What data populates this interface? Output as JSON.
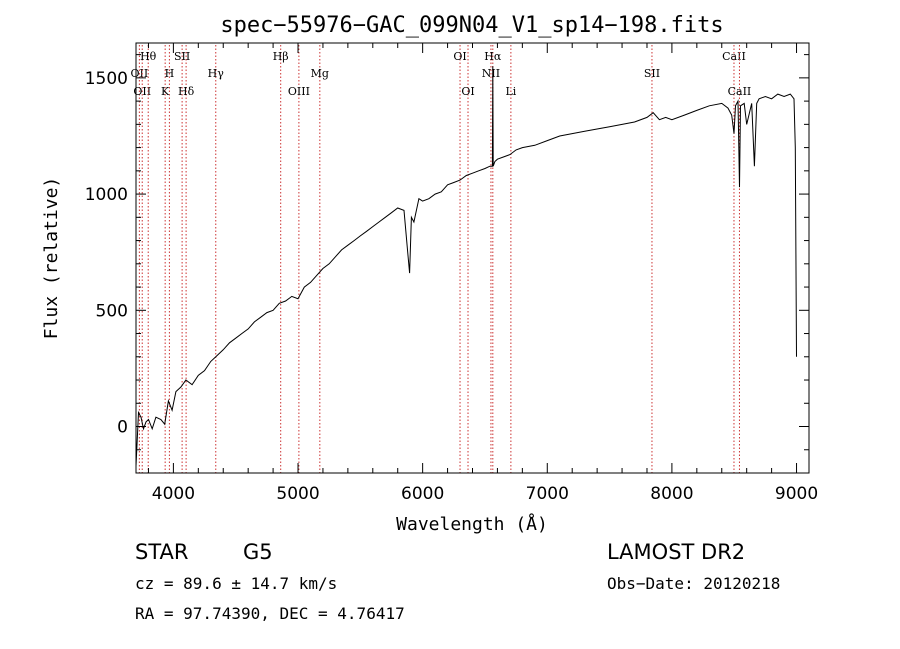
{
  "chart_data": {
    "type": "line",
    "title": "spec−55976−GAC_099N04_V1_sp14−198.fits",
    "xlabel": "Wavelength (Å)",
    "ylabel": "Flux (relative)",
    "xlim": [
      3700,
      9100
    ],
    "ylim": [
      -200,
      1650
    ],
    "xticks": [
      4000,
      5000,
      6000,
      7000,
      8000,
      9000
    ],
    "yticks": [
      0,
      500,
      1000,
      1500
    ],
    "line_color": "#000000",
    "marker_color": "#cc3333",
    "series": [
      {
        "x": [
          3700,
          3720,
          3740,
          3760,
          3780,
          3800,
          3830,
          3860,
          3900,
          3930,
          3960,
          3990,
          4020,
          4060,
          4100,
          4150,
          4200,
          4250,
          4300,
          4340,
          4400,
          4450,
          4500,
          4550,
          4600,
          4650,
          4700,
          4750,
          4800,
          4850,
          4900,
          4950,
          5000,
          5050,
          5100,
          5150,
          5200,
          5250,
          5300,
          5350,
          5400,
          5450,
          5500,
          5550,
          5600,
          5650,
          5700,
          5750,
          5800,
          5850,
          5880,
          5895,
          5910,
          5930,
          5970,
          6000,
          6050,
          6100,
          6150,
          6200,
          6250,
          6300,
          6350,
          6400,
          6450,
          6500,
          6540,
          6560,
          6563,
          6566,
          6580,
          6600,
          6650,
          6700,
          6750,
          6800,
          6900,
          7000,
          7100,
          7200,
          7300,
          7400,
          7500,
          7600,
          7700,
          7800,
          7850,
          7900,
          7950,
          8000,
          8100,
          8200,
          8300,
          8400,
          8450,
          8480,
          8498,
          8510,
          8530,
          8542,
          8550,
          8580,
          8600,
          8640,
          8662,
          8680,
          8700,
          8750,
          8800,
          8850,
          8900,
          8950,
          8980,
          8990,
          9000
        ],
        "y": [
          -170,
          60,
          40,
          -10,
          20,
          30,
          -10,
          40,
          30,
          10,
          110,
          70,
          150,
          170,
          200,
          180,
          220,
          240,
          280,
          300,
          330,
          360,
          380,
          400,
          420,
          450,
          470,
          490,
          500,
          530,
          540,
          560,
          550,
          600,
          620,
          650,
          680,
          700,
          730,
          760,
          780,
          800,
          820,
          840,
          860,
          880,
          900,
          920,
          940,
          930,
          750,
          660,
          900,
          880,
          980,
          970,
          980,
          1000,
          1010,
          1040,
          1050,
          1060,
          1080,
          1090,
          1100,
          1110,
          1120,
          1120,
          1550,
          1120,
          1140,
          1150,
          1160,
          1170,
          1190,
          1200,
          1210,
          1230,
          1250,
          1260,
          1270,
          1280,
          1290,
          1300,
          1310,
          1330,
          1350,
          1320,
          1330,
          1320,
          1340,
          1360,
          1380,
          1390,
          1370,
          1340,
          1260,
          1380,
          1400,
          1030,
          1380,
          1390,
          1300,
          1390,
          1120,
          1390,
          1410,
          1420,
          1410,
          1430,
          1420,
          1430,
          1410,
          1200,
          300
        ]
      }
    ],
    "line_markers": [
      {
        "wl": 3727,
        "labels": [
          "OII"
        ],
        "row": 1
      },
      {
        "wl": 3750,
        "labels": [
          "OII"
        ],
        "row": 2
      },
      {
        "wl": 3798,
        "labels": [
          "Hθ"
        ],
        "row": 0
      },
      {
        "wl": 3934,
        "labels": [
          "K"
        ],
        "row": 2
      },
      {
        "wl": 3968,
        "labels": [
          "H"
        ],
        "row": 1
      },
      {
        "wl": 4070,
        "labels": [
          "SII"
        ],
        "row": 0
      },
      {
        "wl": 4102,
        "labels": [
          "Hδ"
        ],
        "row": 2
      },
      {
        "wl": 4340,
        "labels": [
          "Hγ"
        ],
        "row": 1
      },
      {
        "wl": 4861,
        "labels": [
          "Hβ"
        ],
        "row": 0
      },
      {
        "wl": 5007,
        "labels": [
          "OIII"
        ],
        "row": 2
      },
      {
        "wl": 5175,
        "labels": [
          "Mg"
        ],
        "row": 1
      },
      {
        "wl": 6300,
        "labels": [
          "OI"
        ],
        "row": 0
      },
      {
        "wl": 6364,
        "labels": [
          "OI"
        ],
        "row": 2
      },
      {
        "wl": 6548,
        "labels": [
          "NII"
        ],
        "row": 1
      },
      {
        "wl": 6563,
        "labels": [
          "Hα"
        ],
        "row": 0
      },
      {
        "wl": 6708,
        "labels": [
          "Li"
        ],
        "row": 2
      },
      {
        "wl": 7840,
        "labels": [
          "SII"
        ],
        "row": 1
      },
      {
        "wl": 8498,
        "labels": [
          "CaII"
        ],
        "row": 0
      },
      {
        "wl": 8542,
        "labels": [
          "CaII"
        ],
        "row": 2
      }
    ]
  },
  "info": {
    "class": "STAR",
    "subclass": "G5",
    "survey": "LAMOST DR2",
    "cz": "cz = 89.6 ± 14.7 km/s",
    "obsdate": "Obs−Date: 20120218",
    "radec": "RA =  97.74390, DEC =   4.76417"
  }
}
